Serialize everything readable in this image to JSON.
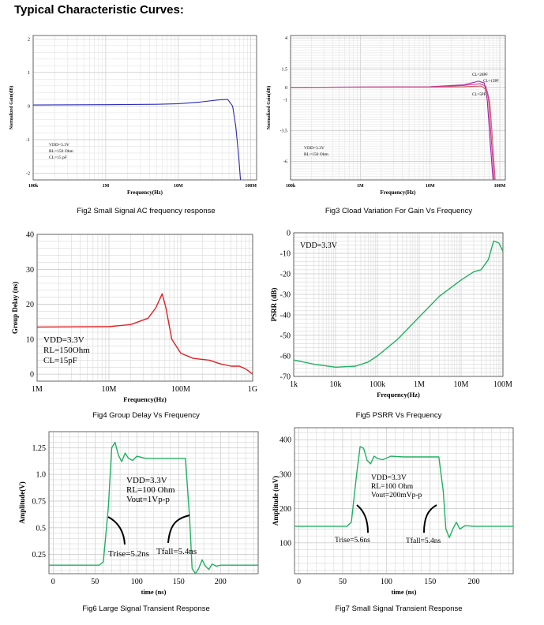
{
  "page": {
    "title": "Typical Characteristic Curves:"
  },
  "captions": [
    "Fig2 Small Signal AC frequency response",
    "Fig3 Cload Variation For Gain Vs Frequency",
    "Fig4 Group Delay Vs Frequency",
    "Fig5 PSRR Vs Frequency",
    "Fig6 Large Signal Transient Response",
    "Fig7 Small Signal Transient Response"
  ],
  "chart_data": [
    {
      "id": "fig2",
      "type": "line",
      "xscale": "log",
      "xlim": [
        100000,
        120000000
      ],
      "ylim": [
        -2.2,
        2.1
      ],
      "xticks": [
        {
          "v": 100000,
          "label": "100k"
        },
        {
          "v": 1000000,
          "label": "1M"
        },
        {
          "v": 10000000,
          "label": "10M"
        },
        {
          "v": 100000000,
          "label": "100M"
        }
      ],
      "yticks": [
        {
          "v": 2,
          "label": "2"
        },
        {
          "v": 1,
          "label": "1"
        },
        {
          "v": 0,
          "label": "0"
        },
        {
          "v": -1,
          "label": "-1"
        },
        {
          "v": -2,
          "label": "-2"
        }
      ],
      "xlabel": "Frequency(Hz)",
      "ylabel": "Normalized Gain(dB)",
      "grid": true,
      "annotations": [
        "VDD=3.3V",
        "RL=150 Ohm",
        "CL=15 pF"
      ],
      "series": [
        {
          "color": "#2a2ab5",
          "x": [
            100000,
            1000000,
            5000000,
            10000000,
            20000000,
            35000000,
            48000000,
            56000000,
            62000000,
            68000000,
            72000000
          ],
          "y": [
            0.03,
            0.04,
            0.05,
            0.07,
            0.12,
            0.18,
            0.2,
            0.0,
            -0.6,
            -1.5,
            -2.2
          ]
        }
      ]
    },
    {
      "id": "fig3",
      "type": "line",
      "xscale": "log",
      "xlim": [
        100000,
        120000000
      ],
      "ylim": [
        -7.5,
        4.2
      ],
      "xticks": [
        {
          "v": 100000,
          "label": "100k"
        },
        {
          "v": 1000000,
          "label": "1M"
        },
        {
          "v": 10000000,
          "label": "10M"
        },
        {
          "v": 100000000,
          "label": "100M"
        }
      ],
      "yticks": [
        {
          "v": 4,
          "label": "4"
        },
        {
          "v": 1.5,
          "label": "1.5"
        },
        {
          "v": 0,
          "label": "0"
        },
        {
          "v": -1,
          "label": "-1"
        },
        {
          "v": -3.5,
          "label": "-3.5"
        },
        {
          "v": -6,
          "label": "-6"
        }
      ],
      "xlabel": "Frequency(Hz)",
      "ylabel": "Normalized Gain(dB)",
      "grid": true,
      "annotations": [
        "VDD=3.3V",
        "RL=150 Ohm"
      ],
      "series": [
        {
          "name": "CL=20PF",
          "color": "#a020b0",
          "x": [
            100000,
            10000000,
            30000000,
            50000000,
            60000000,
            66000000,
            72000000,
            80000000
          ],
          "y": [
            0,
            0.05,
            0.2,
            0.5,
            0.35,
            -1,
            -4,
            -7.5
          ]
        },
        {
          "name": "CL=15PF",
          "color": "#d03090",
          "x": [
            100000,
            10000000,
            30000000,
            52000000,
            63000000,
            69000000,
            75000000,
            83000000
          ],
          "y": [
            0,
            0.04,
            0.15,
            0.3,
            0.1,
            -1,
            -4,
            -7.5
          ]
        },
        {
          "name": "CL=5PF",
          "color": "#d06060",
          "x": [
            100000,
            10000000,
            30000000,
            55000000,
            66000000,
            72000000,
            78000000,
            86000000
          ],
          "y": [
            0,
            0.02,
            0.05,
            0.1,
            -0.3,
            -1.2,
            -4,
            -7.5
          ]
        }
      ]
    },
    {
      "id": "fig4",
      "type": "line",
      "xscale": "log",
      "xlim": [
        1000000,
        1000000000
      ],
      "ylim": [
        -2,
        40
      ],
      "xticks": [
        {
          "v": 1000000,
          "label": "1M"
        },
        {
          "v": 10000000,
          "label": "10M"
        },
        {
          "v": 100000000,
          "label": "100M"
        },
        {
          "v": 1000000000,
          "label": "1G"
        }
      ],
      "yticks": [
        {
          "v": 40,
          "label": "40"
        },
        {
          "v": 30,
          "label": "30"
        },
        {
          "v": 20,
          "label": "20"
        },
        {
          "v": 10,
          "label": "10"
        },
        {
          "v": 0,
          "label": "0"
        }
      ],
      "xlabel": "Frequency(Hz)",
      "ylabel": "Group Delay (ns)",
      "grid": true,
      "annotations": [
        "VDD=3.3V",
        "RL=150Ohm",
        "CL=15pF"
      ],
      "series": [
        {
          "color": "#e02020",
          "x": [
            1000000,
            10000000,
            20000000,
            35000000,
            45000000,
            55000000,
            62000000,
            75000000,
            100000000,
            150000000,
            250000000,
            350000000,
            500000000,
            650000000,
            800000000,
            1000000000
          ],
          "y": [
            13.5,
            13.6,
            14.2,
            16,
            19,
            23,
            19,
            10,
            6,
            4.5,
            4,
            3,
            2.3,
            2.3,
            1.5,
            0
          ]
        }
      ]
    },
    {
      "id": "fig5",
      "type": "line",
      "xscale": "log",
      "xlim": [
        1000,
        100000000
      ],
      "ylim": [
        -70,
        0
      ],
      "xticks": [
        {
          "v": 1000,
          "label": "1k"
        },
        {
          "v": 10000,
          "label": "10k"
        },
        {
          "v": 100000,
          "label": "100k"
        },
        {
          "v": 1000000,
          "label": "1M"
        },
        {
          "v": 10000000,
          "label": "10M"
        },
        {
          "v": 100000000,
          "label": "100M"
        }
      ],
      "yticks": [
        {
          "v": 0,
          "label": "0"
        },
        {
          "v": -10,
          "label": "-10"
        },
        {
          "v": -20,
          "label": "-20"
        },
        {
          "v": -30,
          "label": "-30"
        },
        {
          "v": -40,
          "label": "-40"
        },
        {
          "v": -50,
          "label": "-50"
        },
        {
          "v": -60,
          "label": "-60"
        },
        {
          "v": -70,
          "label": "-70"
        }
      ],
      "xlabel": "Frequency(Hz)",
      "ylabel": "PSRR (dB)",
      "grid": true,
      "annotations": [
        "VDD=3.3V"
      ],
      "series": [
        {
          "color": "#20b060",
          "x": [
            1000,
            3000,
            10000,
            30000,
            60000,
            100000,
            300000,
            1000000,
            3000000,
            10000000,
            20000000,
            30000000,
            45000000,
            60000000,
            80000000,
            100000000
          ],
          "y": [
            -62,
            -64,
            -65.5,
            -65,
            -63,
            -60,
            -52,
            -41,
            -31,
            -23,
            -19,
            -18,
            -13,
            -4,
            -5,
            -9
          ]
        }
      ]
    },
    {
      "id": "fig6",
      "type": "line",
      "xscale": "linear",
      "xlim": [
        -5,
        245
      ],
      "ylim": [
        0.07,
        1.4
      ],
      "xticks": [
        {
          "v": 0,
          "label": "0"
        },
        {
          "v": 50,
          "label": "50"
        },
        {
          "v": 100,
          "label": "100"
        },
        {
          "v": 150,
          "label": "150"
        },
        {
          "v": 200,
          "label": "200"
        }
      ],
      "yticks": [
        {
          "v": 1.25,
          "label": "1.25"
        },
        {
          "v": 1,
          "label": "1.0"
        },
        {
          "v": 0.75,
          "label": "0.75"
        },
        {
          "v": 0.5,
          "label": "0.5"
        },
        {
          "v": 0.25,
          "label": "0.25"
        }
      ],
      "xlabel": "time (ns)",
      "ylabel": "Amplitude(V)",
      "grid": true,
      "annotations": [
        "VDD=3.3V",
        "RL=100 Ohm",
        "Vout=1Vp-p",
        "Trise=5.2ns",
        "Tfall=5.4ns"
      ],
      "series": [
        {
          "color": "#20b060",
          "x": [
            -5,
            55,
            60,
            66,
            70,
            74,
            78,
            82,
            86,
            90,
            95,
            100,
            110,
            130,
            150,
            158,
            163,
            166,
            170,
            174,
            178,
            182,
            186,
            190,
            195,
            200,
            220,
            245
          ],
          "y": [
            0.15,
            0.15,
            0.18,
            0.7,
            1.25,
            1.3,
            1.18,
            1.12,
            1.2,
            1.15,
            1.13,
            1.17,
            1.15,
            1.15,
            1.15,
            1.15,
            0.6,
            0.12,
            0.05,
            0.12,
            0.2,
            0.14,
            0.11,
            0.16,
            0.14,
            0.15,
            0.15,
            0.15
          ]
        }
      ]
    },
    {
      "id": "fig7",
      "type": "line",
      "xscale": "linear",
      "xlim": [
        -5,
        245
      ],
      "ylim": [
        10,
        435
      ],
      "xticks": [
        {
          "v": 0,
          "label": "0"
        },
        {
          "v": 50,
          "label": "50"
        },
        {
          "v": 100,
          "label": "100"
        },
        {
          "v": 150,
          "label": "150"
        },
        {
          "v": 200,
          "label": "200"
        }
      ],
      "yticks": [
        {
          "v": 400,
          "label": "400"
        },
        {
          "v": 300,
          "label": "300"
        },
        {
          "v": 200,
          "label": "200"
        },
        {
          "v": 100,
          "label": "100"
        }
      ],
      "xlabel": "time (ns)",
      "ylabel": "Amplitude (mV)",
      "grid": true,
      "annotations": [
        "VDD=3.3V",
        "RL=100 Ohm",
        "Vout=200mVp-p",
        "Trise=5.6ns",
        "Tfall=5.4ns"
      ],
      "series": [
        {
          "color": "#20b060",
          "x": [
            -5,
            55,
            60,
            66,
            70,
            74,
            78,
            82,
            86,
            90,
            96,
            105,
            120,
            140,
            153,
            160,
            165,
            168,
            172,
            176,
            180,
            184,
            190,
            200,
            220,
            245
          ],
          "y": [
            148,
            148,
            160,
            300,
            380,
            375,
            340,
            330,
            352,
            345,
            342,
            352,
            350,
            350,
            350,
            350,
            250,
            140,
            115,
            140,
            160,
            140,
            150,
            148,
            148,
            148
          ]
        }
      ]
    }
  ]
}
